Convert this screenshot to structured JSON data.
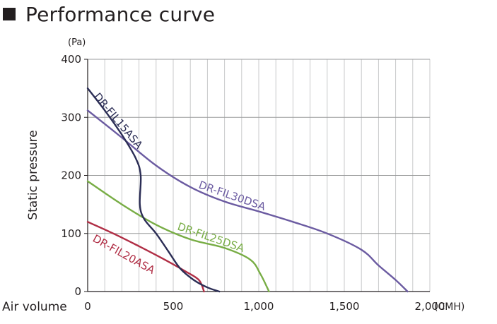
{
  "page": {
    "title": "Performance curve"
  },
  "chart_data": {
    "type": "line",
    "title": "Performance curve",
    "xlabel": "Air volume",
    "xunit": "(CMH)",
    "ylabel": "Static pressure",
    "yunit": "(Pa)",
    "xlim": [
      0,
      2000
    ],
    "ylim": [
      0,
      400
    ],
    "x_ticks": [
      "0",
      "500",
      "1,000",
      "1,500",
      "2,000"
    ],
    "y_ticks": [
      "0",
      "100",
      "200",
      "300",
      "400"
    ],
    "grid": true,
    "series": [
      {
        "name": "DR-FIL15ASA",
        "color": "#2b2d55",
        "points": [
          [
            0,
            350
          ],
          [
            100,
            312
          ],
          [
            200,
            270
          ],
          [
            280,
            230
          ],
          [
            310,
            200
          ],
          [
            305,
            150
          ],
          [
            330,
            125
          ],
          [
            400,
            100
          ],
          [
            470,
            70
          ],
          [
            540,
            40
          ],
          [
            620,
            20
          ],
          [
            700,
            7
          ],
          [
            770,
            0
          ]
        ]
      },
      {
        "name": "DR-FIL30DSA",
        "color": "#6b5ba1",
        "points": [
          [
            0,
            312
          ],
          [
            200,
            265
          ],
          [
            400,
            217
          ],
          [
            600,
            180
          ],
          [
            800,
            155
          ],
          [
            1000,
            138
          ],
          [
            1200,
            120
          ],
          [
            1400,
            100
          ],
          [
            1600,
            72
          ],
          [
            1700,
            45
          ],
          [
            1800,
            20
          ],
          [
            1870,
            0
          ]
        ]
      },
      {
        "name": "DR-FIL25DSA",
        "color": "#78ad45",
        "points": [
          [
            0,
            190
          ],
          [
            200,
            150
          ],
          [
            400,
            115
          ],
          [
            600,
            90
          ],
          [
            800,
            75
          ],
          [
            950,
            55
          ],
          [
            1010,
            30
          ],
          [
            1060,
            0
          ]
        ]
      },
      {
        "name": "DR-FIL20ASA",
        "color": "#b02e45",
        "points": [
          [
            0,
            120
          ],
          [
            150,
            100
          ],
          [
            300,
            78
          ],
          [
            450,
            55
          ],
          [
            570,
            35
          ],
          [
            650,
            20
          ],
          [
            680,
            0
          ]
        ]
      }
    ]
  }
}
